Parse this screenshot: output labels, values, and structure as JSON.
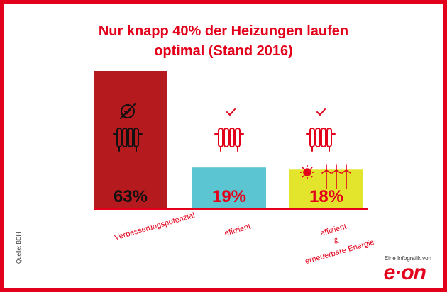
{
  "title": {
    "line1": "Nur knapp 40% der Heizungen laufen",
    "line2": "optimal (Stand 2016)"
  },
  "colors": {
    "brand_red": "#e2001a",
    "bar_dark_red": "#b51a1f",
    "bar_teal": "#5cc5d2",
    "bar_yellow": "#e3e52d",
    "baseline": "#e2001a"
  },
  "chart_data": {
    "type": "bar",
    "title": "Nur knapp 40% der Heizungen laufen optimal (Stand 2016)",
    "categories": [
      "Verbesserungspotenzial",
      "effizient",
      "effizient & erneuerbare Energie"
    ],
    "category_lines": [
      [
        "Verbesserungspotenzial"
      ],
      [
        "effizient"
      ],
      [
        "effizient",
        "&",
        "erneuerbare Energie"
      ]
    ],
    "values": [
      63,
      19,
      18
    ],
    "value_labels": [
      "63%",
      "19%",
      "18%"
    ],
    "bar_colors": [
      "#b51a1f",
      "#5cc5d2",
      "#e3e52d"
    ],
    "value_label_colors": [
      "#111111",
      "#e2001a",
      "#e2001a"
    ],
    "icons": [
      [
        "no-check-icon",
        "radiator-icon"
      ],
      [
        "checkmark-icon",
        "radiator-icon"
      ],
      [
        "checkmark-icon",
        "radiator-icon",
        "sun-icon",
        "wind-turbine-icon"
      ]
    ],
    "ylim": [
      0,
      100
    ],
    "grid": false,
    "legend": "none",
    "xlabel": "",
    "ylabel": ""
  },
  "footer": {
    "source": "Quelle: BDH",
    "infografik": "Eine Infografik von",
    "logo": "e·on"
  }
}
